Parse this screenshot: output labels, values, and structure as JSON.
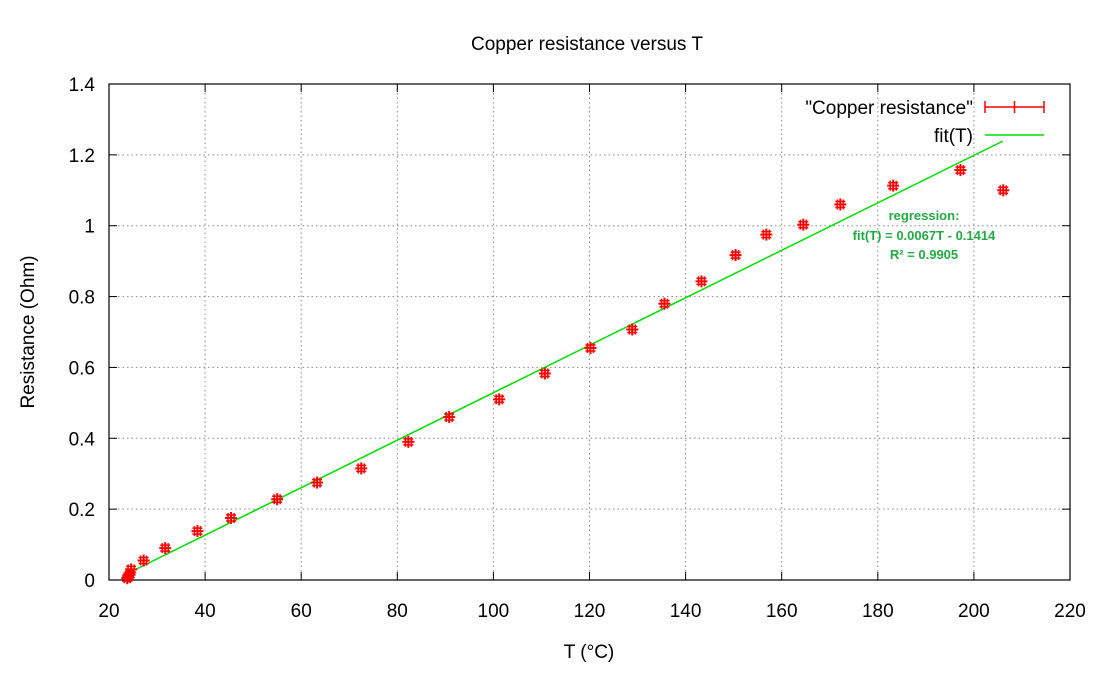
{
  "chart_data": {
    "type": "scatter",
    "title": "Copper resistance versus T",
    "xlabel": "T (°C)",
    "ylabel": "Resistance (Ohm)",
    "xlim": [
      20,
      220
    ],
    "ylim": [
      0,
      1.4
    ],
    "xticks": [
      20,
      40,
      60,
      80,
      100,
      120,
      140,
      160,
      180,
      200,
      220
    ],
    "yticks": [
      0,
      0.2,
      0.4,
      0.6,
      0.8,
      1,
      1.2,
      1.4
    ],
    "xtick_labels": [
      "20",
      "40",
      "60",
      "80",
      "100",
      "120",
      "140",
      "160",
      "180",
      "200",
      "220"
    ],
    "ytick_labels": [
      "0",
      "0.2",
      "0.4",
      "0.6",
      "0.8",
      "1",
      "1.2",
      "1.4"
    ],
    "grid": true,
    "legend_position": "top-right",
    "series": [
      {
        "name": "\"Copper resistance\"",
        "kind": "points-with-errorbars",
        "color": "#ff0000",
        "x": [
          23.8,
          24.0,
          24.3,
          24.6,
          27.2,
          31.7,
          38.4,
          45.4,
          55.0,
          63.3,
          72.5,
          82.3,
          90.8,
          101.2,
          110.7,
          120.2,
          128.9,
          135.6,
          143.3,
          150.4,
          156.8,
          164.5,
          172.2,
          183.2,
          197.2,
          206.1
        ],
        "y": [
          0.005,
          0.01,
          0.015,
          0.03,
          0.055,
          0.09,
          0.138,
          0.175,
          0.228,
          0.275,
          0.315,
          0.39,
          0.46,
          0.51,
          0.583,
          0.655,
          0.707,
          0.78,
          0.843,
          0.917,
          0.975,
          1.003,
          1.06,
          1.113,
          1.157,
          1.1
        ]
      },
      {
        "name": "fit(T)",
        "kind": "line",
        "color": "#00dd00",
        "slope": 0.0067,
        "intercept": -0.1414,
        "x_range": [
          24,
          206
        ]
      }
    ],
    "annotation": {
      "lines": [
        "regression:",
        "fit(T) = 0.0067T - 0.1414",
        "R² = 0.9905"
      ],
      "color": "#22aa44",
      "x": 200,
      "y": 1.0
    }
  }
}
